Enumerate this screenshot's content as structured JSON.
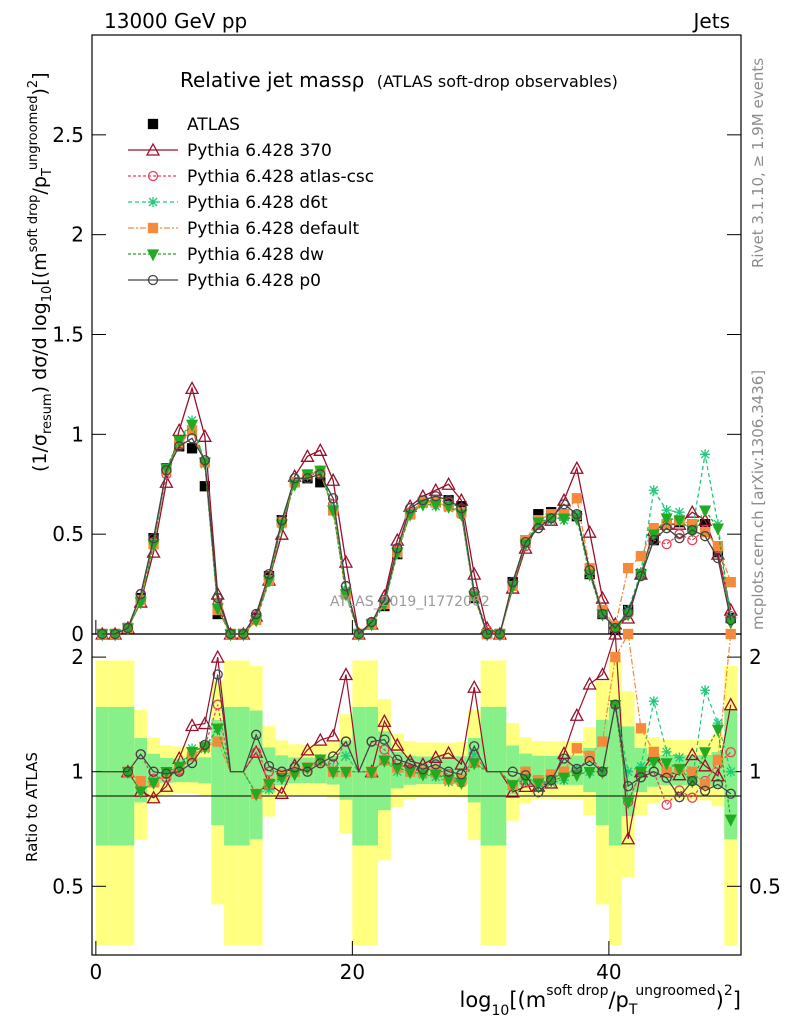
{
  "header": {
    "left": "13000 GeV pp",
    "right": "Jets"
  },
  "title": {
    "main": "Relative jet massρ",
    "sub": "(ATLAS soft-drop observables)"
  },
  "side_text": {
    "rivet": "Rivet 3.1.10, ≥ 1.9M events",
    "mcplots": "mcplots.cern.ch [arXiv:1306.3436]"
  },
  "watermark": "ATLAS_2019_I1772062",
  "ylabel_main": "(1/σresum) dσ/d log10[(msoft drop/pTungroomed)2]",
  "ylabel_ratio": "Ratio to ATLAS",
  "xlabel": "log10[(msoft drop/pTungroomed)2]",
  "chart_data": {
    "type": "line",
    "title": "Relative jet massρ (ATLAS soft-drop observables)",
    "x": [
      0.5,
      1.5,
      2.5,
      3.5,
      4.5,
      5.5,
      6.5,
      7.5,
      8.5,
      9.5,
      10.5,
      11.5,
      12.5,
      13.5,
      14.5,
      15.5,
      16.5,
      17.5,
      18.5,
      19.5,
      20.5,
      21.5,
      22.5,
      23.5,
      24.5,
      25.5,
      26.5,
      27.5,
      28.5,
      29.5,
      30.5,
      31.5,
      32.5,
      33.5,
      34.5,
      35.5,
      36.5,
      37.5,
      38.5,
      39.5,
      40.5,
      41.5,
      42.5,
      43.5,
      44.5,
      45.5,
      46.5,
      47.5,
      48.5,
      49.5
    ],
    "xlim": [
      -0.3,
      50.3
    ],
    "ylim_main": [
      0,
      3.0
    ],
    "ylim_ratio": [
      0.33,
      2.3
    ],
    "yticks_main": [
      0,
      0.5,
      1,
      1.5,
      2,
      2.5
    ],
    "yticks_ratio": [
      0.5,
      1,
      2
    ],
    "xticks": [
      0,
      20,
      40
    ],
    "series": [
      {
        "name": "ATLAS",
        "color": "#000000",
        "marker": "square",
        "dash": "none",
        "values": [
          0,
          0,
          0.03,
          0.18,
          0.48,
          0.83,
          0.94,
          0.93,
          0.74,
          0.1,
          0,
          0,
          0.08,
          0.29,
          0.57,
          0.76,
          0.78,
          0.76,
          0.62,
          0.2,
          0,
          0.05,
          0.14,
          0.4,
          0.6,
          0.66,
          0.66,
          0.67,
          0.64,
          0.18,
          0,
          0,
          0.26,
          0.47,
          0.6,
          0.61,
          0.6,
          0.59,
          0.3,
          0.1,
          0.02,
          0.12,
          0.3,
          0.47,
          0.55,
          0.56,
          0.55,
          0.55,
          0.41,
          0.08
        ]
      },
      {
        "name": "Pythia 6.428 370",
        "color": "#9b0f2b",
        "marker": "triangle",
        "dash": "none",
        "values": [
          0,
          0,
          0.03,
          0.16,
          0.41,
          0.76,
          1.02,
          1.23,
          0.99,
          0.2,
          0,
          0,
          0.09,
          0.27,
          0.5,
          0.79,
          0.89,
          0.92,
          0.77,
          0.36,
          0,
          0.05,
          0.19,
          0.47,
          0.64,
          0.69,
          0.72,
          0.75,
          0.67,
          0.3,
          0.03,
          0,
          0.23,
          0.43,
          0.55,
          0.57,
          0.67,
          0.83,
          0.51,
          0.18,
          0.05,
          0.08,
          0.3,
          0.52,
          0.55,
          0.55,
          0.61,
          0.57,
          0.4,
          0.12
        ]
      },
      {
        "name": "Pythia 6.428 atlas-csc",
        "color": "#e8405a",
        "marker": "circle",
        "dash": "3,2",
        "values": [
          0,
          0,
          0.03,
          0.2,
          0.46,
          0.8,
          0.95,
          1.02,
          0.86,
          0.15,
          0,
          0,
          0.09,
          0.29,
          0.57,
          0.76,
          0.8,
          0.8,
          0.65,
          0.24,
          0,
          0.06,
          0.16,
          0.42,
          0.61,
          0.66,
          0.67,
          0.66,
          0.6,
          0.2,
          0.02,
          0,
          0.24,
          0.44,
          0.55,
          0.58,
          0.6,
          0.59,
          0.33,
          0.1,
          0.03,
          0.1,
          0.3,
          0.47,
          0.45,
          0.5,
          0.47,
          0.52,
          0.43,
          0.09
        ]
      },
      {
        "name": "Pythia 6.428 d6t",
        "color": "#1fc97a",
        "marker": "star",
        "dash": "4,3",
        "values": [
          0,
          0,
          0.03,
          0.17,
          0.45,
          0.82,
          0.97,
          1.07,
          0.85,
          0.13,
          0,
          0,
          0.07,
          0.26,
          0.55,
          0.76,
          0.8,
          0.82,
          0.63,
          0.22,
          0,
          0.05,
          0.15,
          0.4,
          0.6,
          0.65,
          0.64,
          0.63,
          0.6,
          0.2,
          0,
          0,
          0.24,
          0.46,
          0.55,
          0.57,
          0.57,
          0.6,
          0.3,
          0.1,
          0.03,
          0.12,
          0.31,
          0.72,
          0.62,
          0.61,
          0.52,
          0.9,
          0.55,
          0.08
        ]
      },
      {
        "name": "Pythia 6.428 default",
        "color": "#f58a3c",
        "marker": "square",
        "dash": "6,2,2,2",
        "values": [
          0,
          0,
          0.03,
          0.17,
          0.45,
          0.82,
          0.96,
          1.02,
          0.86,
          0.12,
          0,
          0,
          0.07,
          0.27,
          0.56,
          0.76,
          0.8,
          0.81,
          0.62,
          0.2,
          0,
          0.05,
          0.15,
          0.41,
          0.6,
          0.66,
          0.66,
          0.64,
          0.61,
          0.19,
          0,
          0,
          0.24,
          0.47,
          0.57,
          0.6,
          0.6,
          0.68,
          0.33,
          0.12,
          0.04,
          0.33,
          0.39,
          0.53,
          0.55,
          0.57,
          0.55,
          0.51,
          0.44,
          0.26
        ]
      },
      {
        "name": "Pythia 6.428 dw",
        "color": "#22aa22",
        "marker": "triangle-down",
        "dash": "3,2",
        "values": [
          0,
          0,
          0.03,
          0.16,
          0.45,
          0.83,
          0.97,
          1.05,
          0.86,
          0.13,
          0,
          0,
          0.07,
          0.27,
          0.55,
          0.75,
          0.8,
          0.82,
          0.62,
          0.2,
          0,
          0.05,
          0.15,
          0.41,
          0.6,
          0.65,
          0.65,
          0.64,
          0.6,
          0.19,
          0,
          0,
          0.24,
          0.45,
          0.56,
          0.58,
          0.58,
          0.58,
          0.3,
          0.1,
          0.03,
          0.1,
          0.3,
          0.5,
          0.58,
          0.57,
          0.52,
          0.62,
          0.53,
          0.06
        ]
      },
      {
        "name": "Pythia 6.428 p0",
        "color": "#444444",
        "marker": "circle",
        "dash": "none",
        "values": [
          0,
          0,
          0.03,
          0.2,
          0.48,
          0.82,
          0.94,
          0.98,
          0.87,
          0.18,
          0,
          0,
          0.1,
          0.3,
          0.57,
          0.78,
          0.78,
          0.8,
          0.68,
          0.24,
          0,
          0.06,
          0.17,
          0.43,
          0.63,
          0.67,
          0.69,
          0.67,
          0.63,
          0.21,
          0,
          0,
          0.26,
          0.46,
          0.53,
          0.58,
          0.65,
          0.6,
          0.32,
          0.1,
          0.03,
          0.11,
          0.29,
          0.47,
          0.53,
          0.48,
          0.52,
          0.49,
          0.38,
          0.07
        ]
      }
    ]
  }
}
